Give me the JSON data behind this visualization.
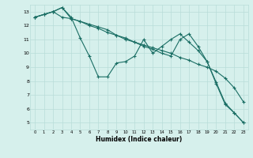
{
  "title": "",
  "xlabel": "Humidex (Indice chaleur)",
  "ylabel": "",
  "bg_color": "#d6f0ec",
  "grid_color": "#b8ddd8",
  "line_color": "#1a6e64",
  "xlim": [
    -0.5,
    23.5
  ],
  "ylim": [
    4.5,
    13.5
  ],
  "xticks": [
    0,
    1,
    2,
    3,
    4,
    5,
    6,
    7,
    8,
    9,
    10,
    11,
    12,
    13,
    14,
    15,
    16,
    17,
    18,
    19,
    20,
    21,
    22,
    23
  ],
  "yticks": [
    5,
    6,
    7,
    8,
    9,
    10,
    11,
    12,
    13
  ],
  "line1_x": [
    0,
    1,
    2,
    3,
    4,
    5,
    6,
    7,
    8,
    9,
    10,
    11,
    12,
    13,
    14,
    15,
    16,
    17,
    18,
    19,
    20,
    21,
    22,
    23
  ],
  "line1_y": [
    12.6,
    12.8,
    13.0,
    13.3,
    12.6,
    11.1,
    9.8,
    8.3,
    8.3,
    9.3,
    9.4,
    9.8,
    11.0,
    10.0,
    10.5,
    11.0,
    11.4,
    10.8,
    10.2,
    9.4,
    7.9,
    6.4,
    5.7,
    5.0
  ],
  "line2_x": [
    0,
    1,
    2,
    3,
    4,
    5,
    6,
    7,
    8,
    9,
    10,
    11,
    12,
    13,
    14,
    15,
    16,
    17,
    18,
    19,
    20,
    21,
    22,
    23
  ],
  "line2_y": [
    12.6,
    12.8,
    13.0,
    12.6,
    12.5,
    12.3,
    12.0,
    11.8,
    11.5,
    11.3,
    11.1,
    10.8,
    10.6,
    10.4,
    10.2,
    10.0,
    9.7,
    9.5,
    9.2,
    9.0,
    8.7,
    8.2,
    7.5,
    6.5
  ],
  "line3_x": [
    0,
    1,
    2,
    3,
    4,
    5,
    6,
    7,
    8,
    9,
    10,
    11,
    12,
    13,
    14,
    15,
    16,
    17,
    18,
    19,
    20,
    21,
    22,
    23
  ],
  "line3_y": [
    12.6,
    12.8,
    13.0,
    13.3,
    12.5,
    12.3,
    12.1,
    11.9,
    11.7,
    11.3,
    11.0,
    10.8,
    10.5,
    10.3,
    10.0,
    9.8,
    11.0,
    11.4,
    10.5,
    9.4,
    7.8,
    6.3,
    5.7,
    5.0
  ]
}
